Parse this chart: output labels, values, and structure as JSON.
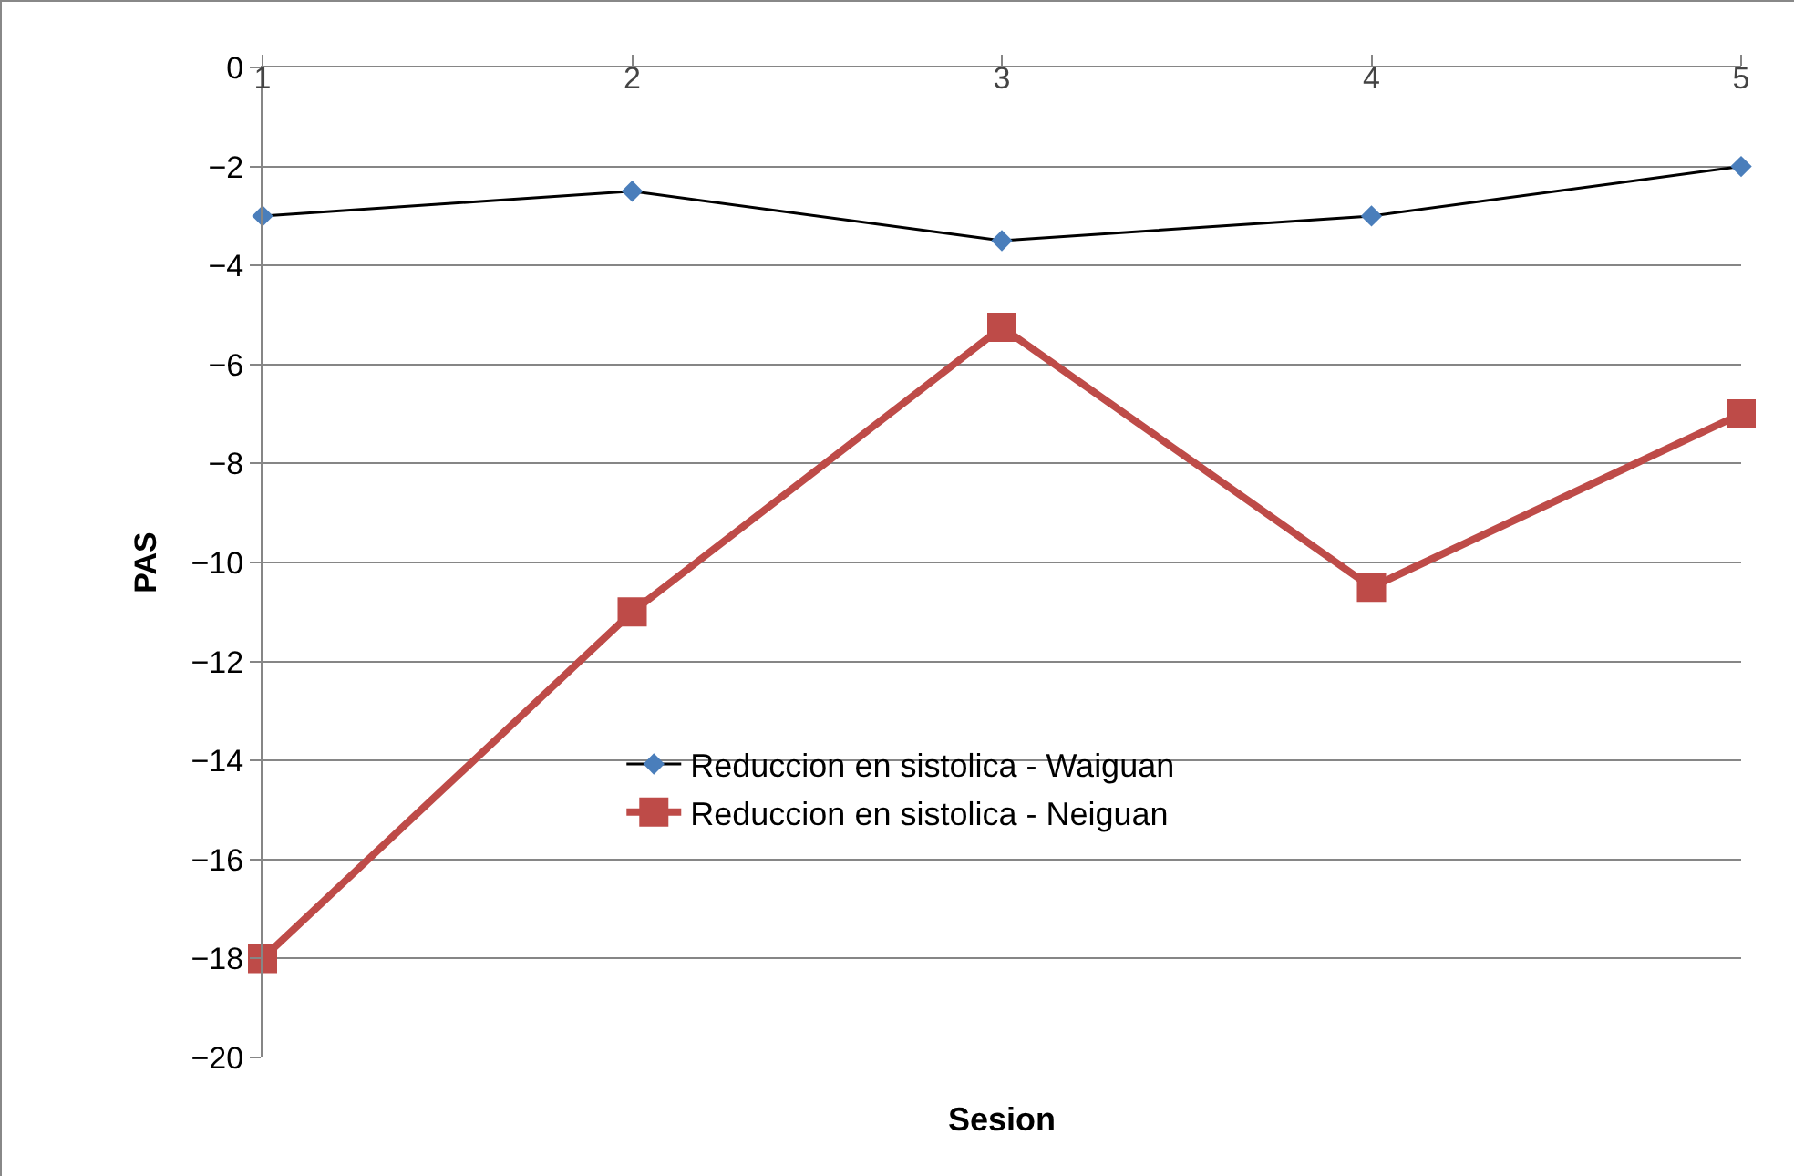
{
  "chart_data": {
    "type": "line",
    "xlabel": "Sesion",
    "ylabel": "PAS",
    "x": [
      1,
      2,
      3,
      4,
      5
    ],
    "xlim": [
      1,
      5
    ],
    "xticks": [
      1,
      2,
      3,
      4,
      5
    ],
    "ylim": [
      -20,
      0
    ],
    "yticks": [
      -20,
      -18,
      -16,
      -14,
      -12,
      -10,
      -8,
      -6,
      -4,
      -2,
      0
    ],
    "grid": "y",
    "legend": "bottom",
    "series": [
      {
        "name": "Reduccion en sistolica - Waiguan",
        "color": "#4a7ebb",
        "marker": "diamond",
        "values": [
          -3,
          -2.5,
          -3.5,
          -3,
          -2
        ]
      },
      {
        "name": "Reduccion en sistolica - Neiguan",
        "color": "#be4b48",
        "marker": "square",
        "values": [
          -18,
          -11,
          -5.25,
          -10.5,
          -7
        ]
      }
    ]
  }
}
